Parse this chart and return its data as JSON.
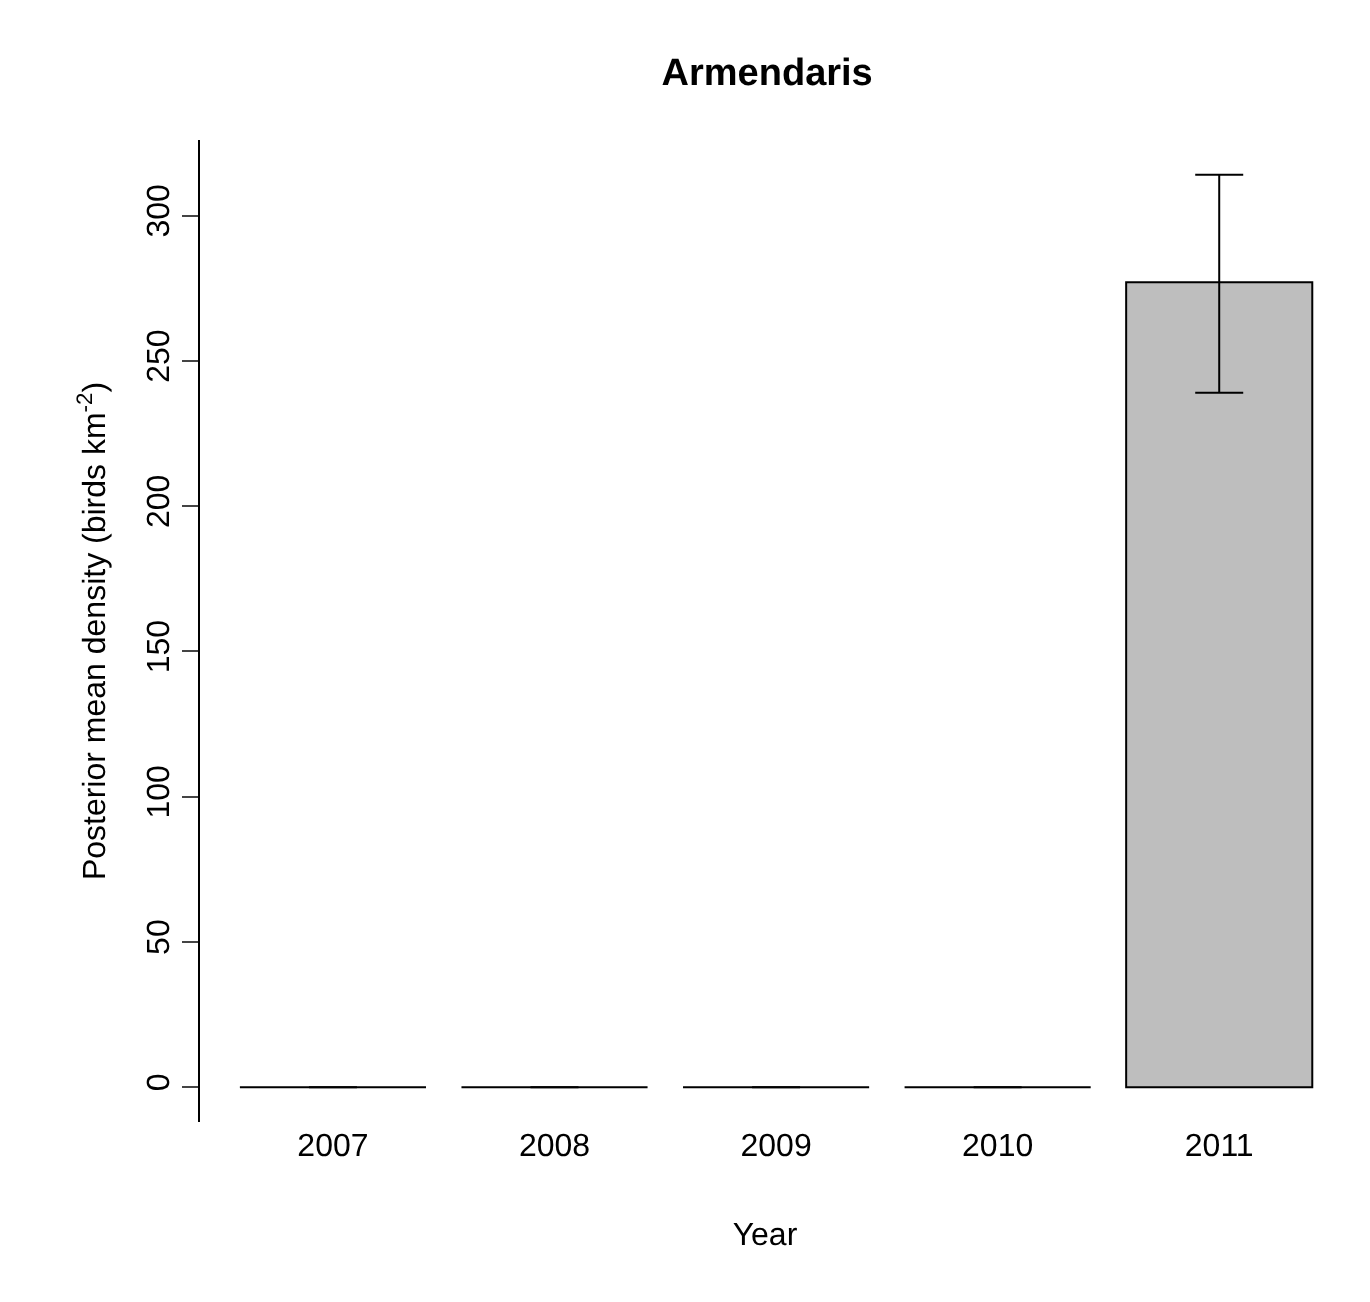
{
  "chart_data": {
    "type": "bar",
    "title": "Armendaris",
    "xlabel": "Year",
    "ylabel": "Posterior mean density (birds km$^{-2}$)",
    "categories": [
      "2007",
      "2008",
      "2009",
      "2010",
      "2011"
    ],
    "values": [
      0,
      0,
      0,
      0,
      277
    ],
    "errors": [
      null,
      null,
      null,
      null,
      [
        239,
        314
      ]
    ],
    "color": "#bebebe",
    "ylim": [
      -12,
      326
    ],
    "yticks": [
      0,
      50,
      100,
      150,
      200,
      250,
      300
    ],
    "grid": false,
    "legend": false
  }
}
